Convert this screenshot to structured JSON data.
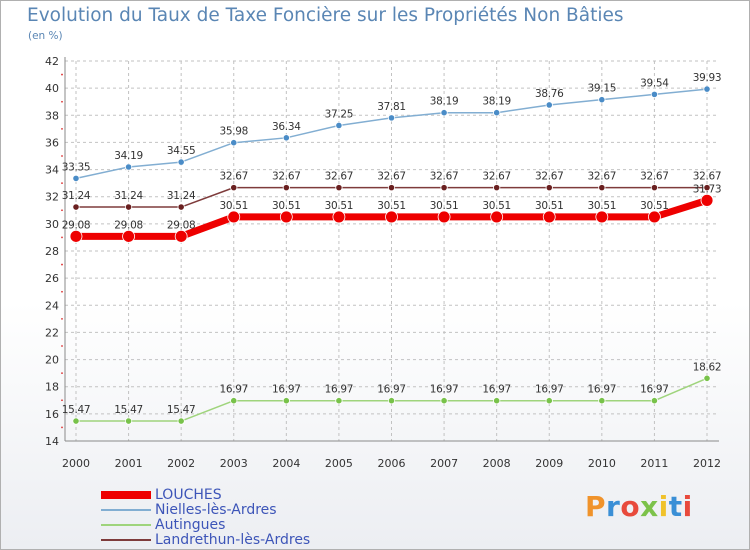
{
  "chart_data": {
    "type": "line",
    "title": "Evolution du Taux de Taxe Foncière sur les Propriétés Non Bâties",
    "unit_label": "(en %)",
    "xlabel": "",
    "ylabel": "",
    "ylim": [
      14,
      42
    ],
    "y_ticks": [
      14,
      16,
      18,
      20,
      22,
      24,
      26,
      28,
      30,
      32,
      34,
      36,
      38,
      40,
      42
    ],
    "categories": [
      "2000",
      "2001",
      "2002",
      "2003",
      "2004",
      "2005",
      "2006",
      "2007",
      "2008",
      "2009",
      "2010",
      "2011",
      "2012"
    ],
    "grid": true,
    "legend_position": "bottom-left",
    "series": [
      {
        "name": "Nielles-lès-Ardres",
        "color": "#82aed2",
        "marker_color": "#4a8cc7",
        "values": [
          33.35,
          34.19,
          34.55,
          35.98,
          36.34,
          37.25,
          37.81,
          38.19,
          38.19,
          38.76,
          39.15,
          39.54,
          39.93
        ],
        "labels": [
          "33.35",
          "34.19",
          "34.55",
          "35.98",
          "36.34",
          "37.25",
          "37.81",
          "38.19",
          "38.19",
          "38.76",
          "39.15",
          "39.54",
          "39.93"
        ]
      },
      {
        "name": "Landrethun-lès-Ardres",
        "color": "#7e3b3b",
        "marker_color": "#6a2020",
        "values": [
          31.24,
          31.24,
          31.24,
          32.67,
          32.67,
          32.67,
          32.67,
          32.67,
          32.67,
          32.67,
          32.67,
          32.67,
          32.67
        ],
        "labels": [
          "31.24",
          "31.24",
          "31.24",
          "32.67",
          "32.67",
          "32.67",
          "32.67",
          "32.67",
          "32.67",
          "32.67",
          "32.67",
          "32.67",
          "32.67"
        ]
      },
      {
        "name": "Autingues",
        "color": "#9fd47c",
        "marker_color": "#78c24a",
        "values": [
          15.47,
          15.47,
          15.47,
          16.97,
          16.97,
          16.97,
          16.97,
          16.97,
          16.97,
          16.97,
          16.97,
          16.97,
          18.62
        ],
        "labels": [
          "15.47",
          "15.47",
          "15.47",
          "16.97",
          "16.97",
          "16.97",
          "16.97",
          "16.97",
          "16.97",
          "16.97",
          "16.97",
          "16.97",
          "18.62"
        ]
      },
      {
        "name": "LOUCHES",
        "color": "#ee0000",
        "marker_color": "#ee0000",
        "values": [
          29.08,
          29.08,
          29.08,
          30.51,
          30.51,
          30.51,
          30.51,
          30.51,
          30.51,
          30.51,
          30.51,
          30.51,
          31.73
        ],
        "labels": [
          "29.08",
          "29.08",
          "29.08",
          "30.51",
          "30.51",
          "30.51",
          "30.51",
          "30.51",
          "30.51",
          "30.51",
          "30.51",
          "30.51",
          "31.73"
        ]
      }
    ],
    "legend_order": [
      "LOUCHES",
      "Nielles-lès-Ardres",
      "Autingues",
      "Landrethun-lès-Ardres"
    ]
  },
  "logo": {
    "letters": [
      "P",
      "r",
      "o",
      "x",
      "i",
      "t",
      "i"
    ],
    "colors": [
      "#f0932b",
      "#3a8fd6",
      "#e84a3c",
      "#7cc24a",
      "#f0c22b",
      "#3a8fd6",
      "#e84a3c"
    ]
  }
}
